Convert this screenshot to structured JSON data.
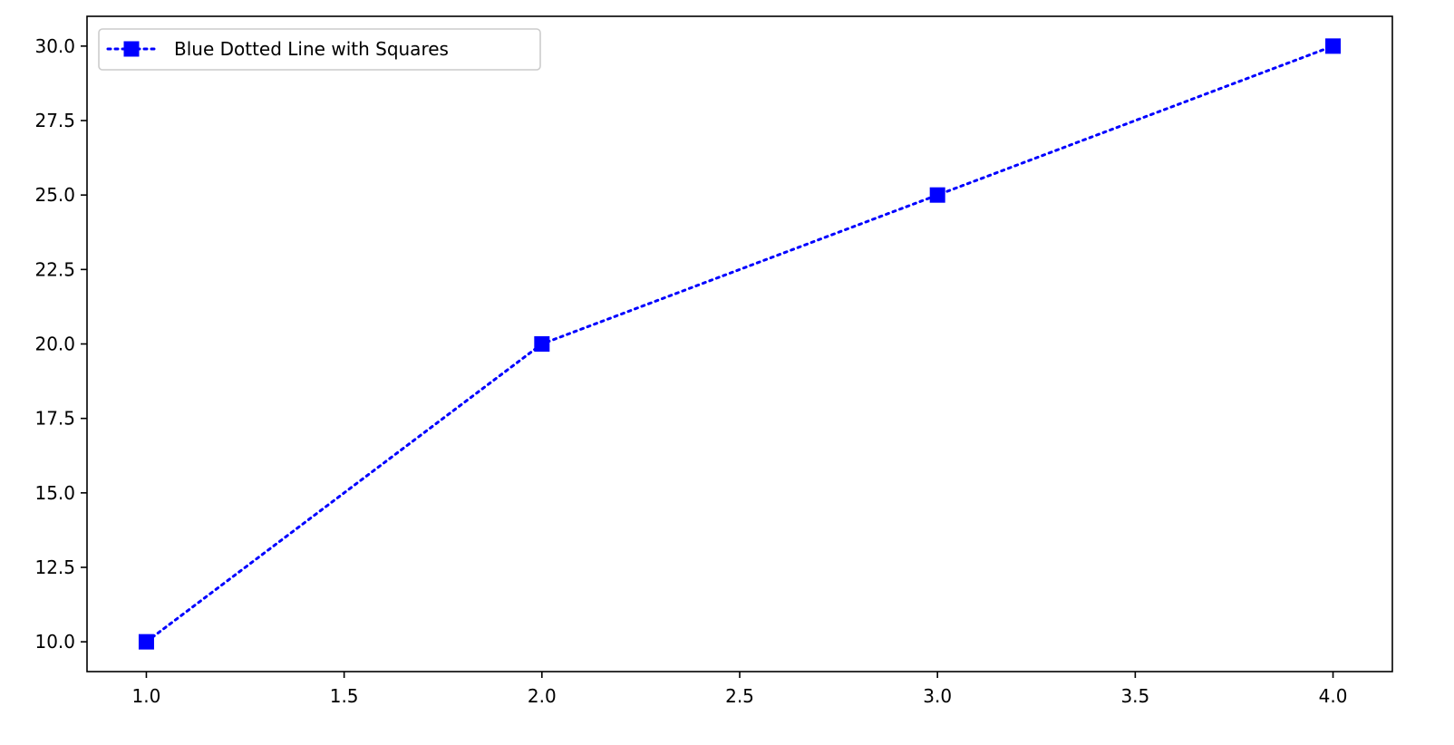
{
  "chart_data": {
    "type": "line",
    "title": "",
    "xlabel": "",
    "ylabel": "",
    "x": [
      1.0,
      2.0,
      3.0,
      4.0
    ],
    "series": [
      {
        "name": "Blue Dotted Line with Squares",
        "values": [
          10.0,
          20.0,
          25.0,
          30.0
        ],
        "color": "#0000ff",
        "line_style": "dotted",
        "marker": "square"
      }
    ],
    "xlim": [
      0.85,
      4.15
    ],
    "ylim": [
      9.0,
      31.0
    ],
    "x_ticks": [
      "1.0",
      "1.5",
      "2.0",
      "2.5",
      "3.0",
      "3.5",
      "4.0"
    ],
    "y_ticks": [
      "10.0",
      "12.5",
      "15.0",
      "17.5",
      "20.0",
      "22.5",
      "25.0",
      "27.5",
      "30.0"
    ],
    "grid": false,
    "legend_position": "top-left"
  }
}
